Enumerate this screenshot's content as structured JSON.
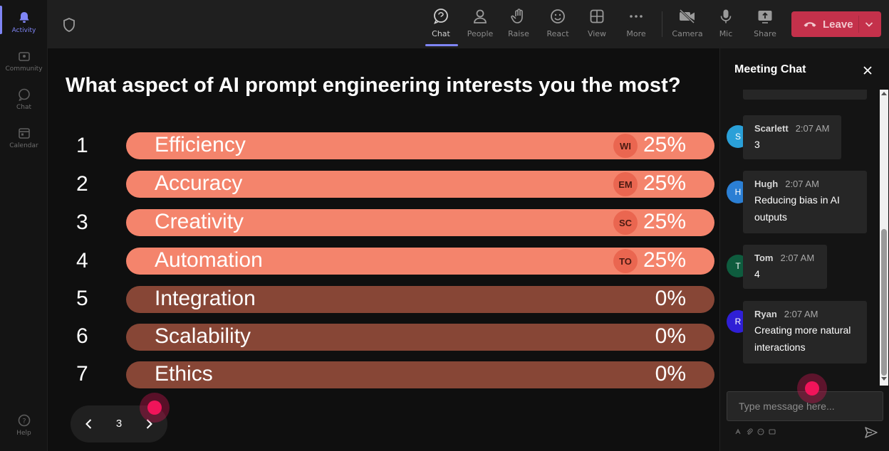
{
  "rail": {
    "items": [
      {
        "label": "Activity",
        "icon": "bell-icon",
        "active": true
      },
      {
        "label": "Community",
        "icon": "community-icon"
      },
      {
        "label": "Chat",
        "icon": "chat-bubble-icon"
      },
      {
        "label": "Calendar",
        "icon": "calendar-icon"
      }
    ],
    "help_label": "Help"
  },
  "topbar": {
    "chat_label": "Chat",
    "people_label": "People",
    "raise_label": "Raise",
    "react_label": "React",
    "view_label": "View",
    "more_label": "More",
    "camera_label": "Camera",
    "mic_label": "Mic",
    "share_label": "Share",
    "leave_label": "Leave",
    "accent_color": "#7f85f5",
    "leave_color": "#c4314b"
  },
  "poll": {
    "question": "What aspect of AI prompt engineering interests you the most?",
    "options": [
      {
        "num": "1",
        "label": "Efficiency",
        "percent": "25%",
        "voter": "WI"
      },
      {
        "num": "2",
        "label": "Accuracy",
        "percent": "25%",
        "voter": "EM"
      },
      {
        "num": "3",
        "label": "Creativity",
        "percent": "25%",
        "voter": "SC"
      },
      {
        "num": "4",
        "label": "Automation",
        "percent": "25%",
        "voter": "TO"
      },
      {
        "num": "5",
        "label": "Integration",
        "percent": "0%"
      },
      {
        "num": "6",
        "label": "Scalability",
        "percent": "0%"
      },
      {
        "num": "7",
        "label": "Ethics",
        "percent": "0%"
      }
    ],
    "voted_color": "#f4846c",
    "empty_color": "#874636",
    "page": "3"
  },
  "chat": {
    "title": "Meeting Chat",
    "messages": [
      {
        "initial": "S",
        "name": "Scarlett",
        "time": "2:07 AM",
        "text": "3",
        "avatar_color": "#2aa0d8"
      },
      {
        "initial": "H",
        "name": "Hugh",
        "time": "2:07 AM",
        "text": "Reducing bias in AI outputs",
        "avatar_color": "#2b7fd4"
      },
      {
        "initial": "T",
        "name": "Tom",
        "time": "2:07 AM",
        "text": "4",
        "avatar_color": "#0e5c3e"
      },
      {
        "initial": "R",
        "name": "Ryan",
        "time": "2:07 AM",
        "text": "Creating more natural interactions",
        "avatar_color": "#2f1fd6"
      }
    ],
    "composer_placeholder": "Type message here..."
  }
}
